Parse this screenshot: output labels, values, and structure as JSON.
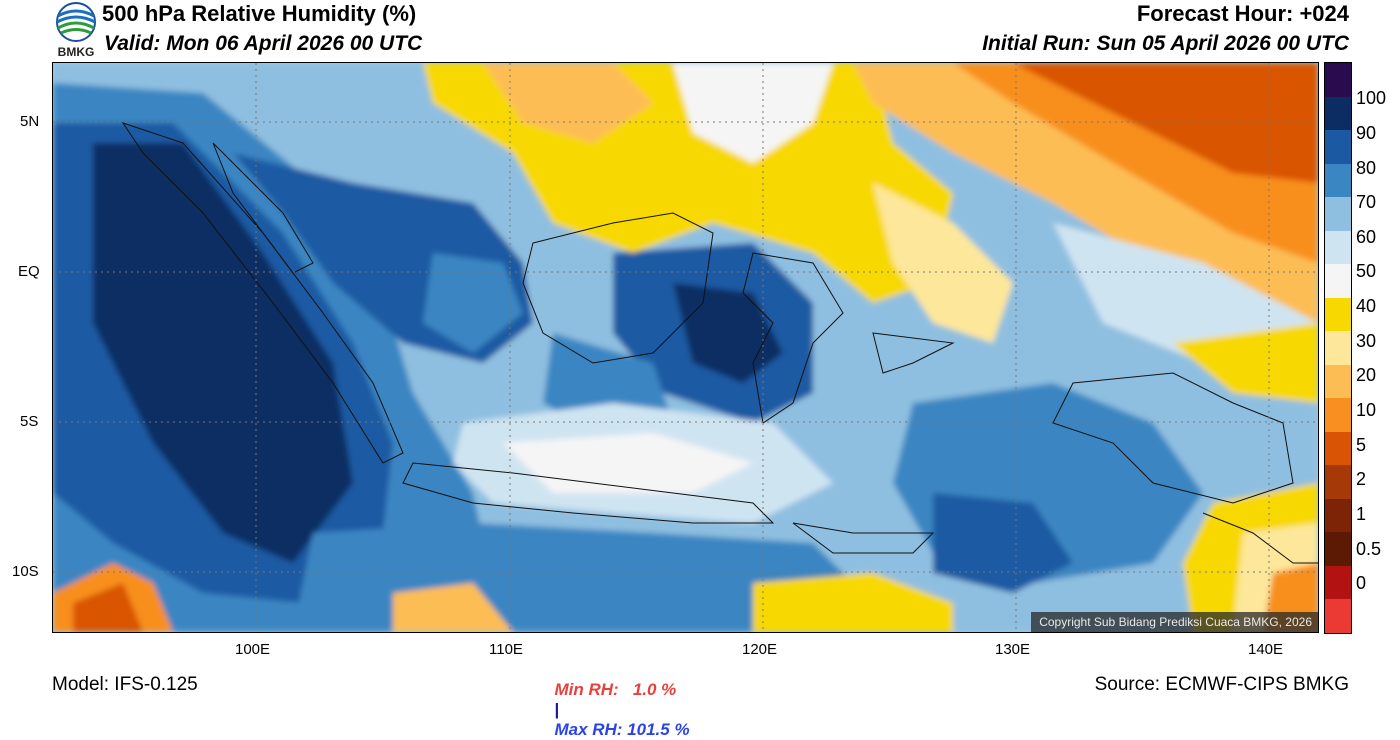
{
  "header": {
    "title": "500 hPa Relative Humidity (%)",
    "valid": "Valid: Mon 06 April 2026 00 UTC",
    "forecast_hour": "Forecast Hour: +024",
    "initial_run": "Initial Run: Sun 05 April 2026 00 UTC",
    "logo_text": "BMKG"
  },
  "map": {
    "lat_labels": [
      "5N",
      "EQ",
      "5S",
      "10S"
    ],
    "lon_labels": [
      "100E",
      "110E",
      "120E",
      "130E",
      "140E"
    ],
    "copyright": "Copyright Sub Bidang Prediksi Cuaca BMKG, 2026"
  },
  "colorbar": {
    "labels": [
      "100",
      "90",
      "80",
      "70",
      "60",
      "50",
      "40",
      "30",
      "20",
      "10",
      "5",
      "2",
      "1",
      "0.5",
      "0"
    ],
    "colors": [
      "#2a0b4d",
      "#0b2d63",
      "#1b5aa3",
      "#3a86c2",
      "#8fbfe0",
      "#cfe4f1",
      "#f5f5f5",
      "#f7d800",
      "#fde79a",
      "#fdbd55",
      "#f88f1e",
      "#d95505",
      "#a53a08",
      "#7d2406",
      "#5c1a05",
      "#b31212",
      "#ea3a33"
    ]
  },
  "stats": {
    "min": "Min RH:   1.0 %",
    "separator": "|",
    "max": "Max RH: 101.5 %"
  },
  "footer": {
    "model": "Model: IFS-0.125",
    "source": "Source: ECMWF-CIPS BMKG"
  }
}
